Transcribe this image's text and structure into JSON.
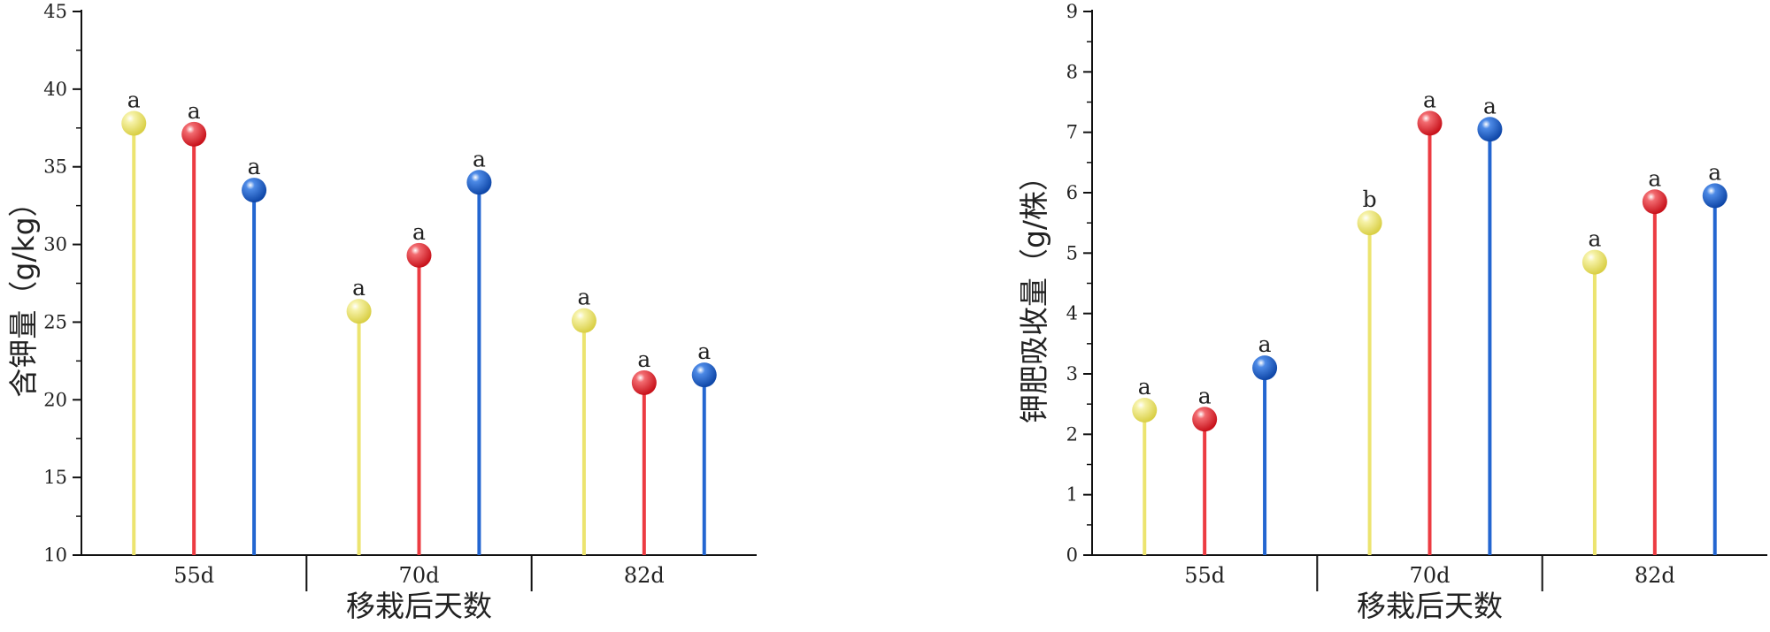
{
  "chart_data": [
    {
      "type": "lollipop",
      "xlabel": "移栽后天数",
      "ylabel": "含钾量（g/kg）",
      "ylim": [
        10,
        45
      ],
      "yticks": [
        10,
        15,
        20,
        25,
        30,
        35,
        40,
        45
      ],
      "categories": [
        "55d",
        "70d",
        "82d"
      ],
      "series": [
        {
          "color": "#ece46f",
          "values": [
            37.8,
            25.7,
            25.1
          ],
          "labels": [
            "a",
            "a",
            "a"
          ]
        },
        {
          "color": "#ec3b42",
          "values": [
            37.1,
            29.3,
            21.1
          ],
          "labels": [
            "a",
            "a",
            "a"
          ]
        },
        {
          "color": "#2366d1",
          "values": [
            33.5,
            34.0,
            21.6
          ],
          "labels": [
            "a",
            "a",
            "a"
          ]
        }
      ]
    },
    {
      "type": "lollipop",
      "xlabel": "移栽后天数",
      "ylabel": "钾肥吸收量（g/株）",
      "ylim": [
        0,
        9
      ],
      "yticks": [
        0,
        1,
        2,
        3,
        4,
        5,
        6,
        7,
        8,
        9
      ],
      "categories": [
        "55d",
        "70d",
        "82d"
      ],
      "series": [
        {
          "color": "#ece46f",
          "values": [
            2.4,
            5.5,
            4.85
          ],
          "labels": [
            "a",
            "b",
            "a"
          ]
        },
        {
          "color": "#ec3b42",
          "values": [
            2.25,
            7.15,
            5.85
          ],
          "labels": [
            "a",
            "a",
            "a"
          ]
        },
        {
          "color": "#2366d1",
          "values": [
            3.1,
            7.05,
            5.95
          ],
          "labels": [
            "a",
            "a",
            "a"
          ]
        }
      ]
    }
  ]
}
